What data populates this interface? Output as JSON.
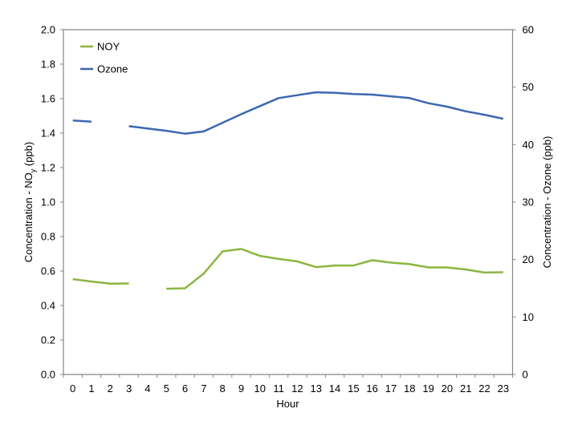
{
  "chart_data": {
    "type": "line",
    "title": "",
    "xlabel": "Hour",
    "ylabel": "Concentration - NOy (ppb)",
    "ylabel_parts": {
      "prefix": "Concentration - NO",
      "subscript": "y",
      "suffix": " (ppb)"
    },
    "y2label": "Concentration - Ozone (ppb)",
    "categories": [
      "0",
      "1",
      "2",
      "3",
      "4",
      "5",
      "6",
      "7",
      "8",
      "9",
      "10",
      "11",
      "12",
      "13",
      "14",
      "15",
      "16",
      "17",
      "18",
      "19",
      "20",
      "21",
      "22",
      "23"
    ],
    "ylim": [
      0,
      2.0
    ],
    "y2lim": [
      0,
      60
    ],
    "yticks": [
      "0.0",
      "0.2",
      "0.4",
      "0.6",
      "0.8",
      "1.0",
      "1.2",
      "1.4",
      "1.6",
      "1.8",
      "2.0"
    ],
    "y2ticks": [
      "0",
      "10",
      "20",
      "30",
      "40",
      "50",
      "60"
    ],
    "grid": false,
    "legend_position": "upper-left-inside",
    "series": [
      {
        "name": "NOY",
        "axis": "left",
        "color": "#8cb540",
        "values": [
          0.553,
          0.539,
          0.527,
          0.528,
          null,
          0.497,
          0.5,
          0.585,
          0.714,
          0.728,
          0.688,
          0.67,
          0.656,
          0.623,
          0.632,
          0.632,
          0.663,
          0.649,
          0.64,
          0.621,
          0.621,
          0.609,
          0.591,
          0.593
        ]
      },
      {
        "name": "Ozone",
        "axis": "right",
        "color": "#3c67b1",
        "values": [
          44.2,
          44.0,
          null,
          43.2,
          42.8,
          42.4,
          41.9,
          42.3,
          43.8,
          45.3,
          46.7,
          48.1,
          48.6,
          49.1,
          49.0,
          48.8,
          48.7,
          48.4,
          48.1,
          47.2,
          46.6,
          45.8,
          45.2,
          44.5
        ]
      }
    ]
  },
  "legend": {
    "items": [
      {
        "label": "NOY",
        "color": "#8cb540"
      },
      {
        "label": "Ozone",
        "color": "#3c67b1"
      }
    ]
  },
  "colors": {
    "axis": "#868686",
    "background": "#ffffff"
  }
}
